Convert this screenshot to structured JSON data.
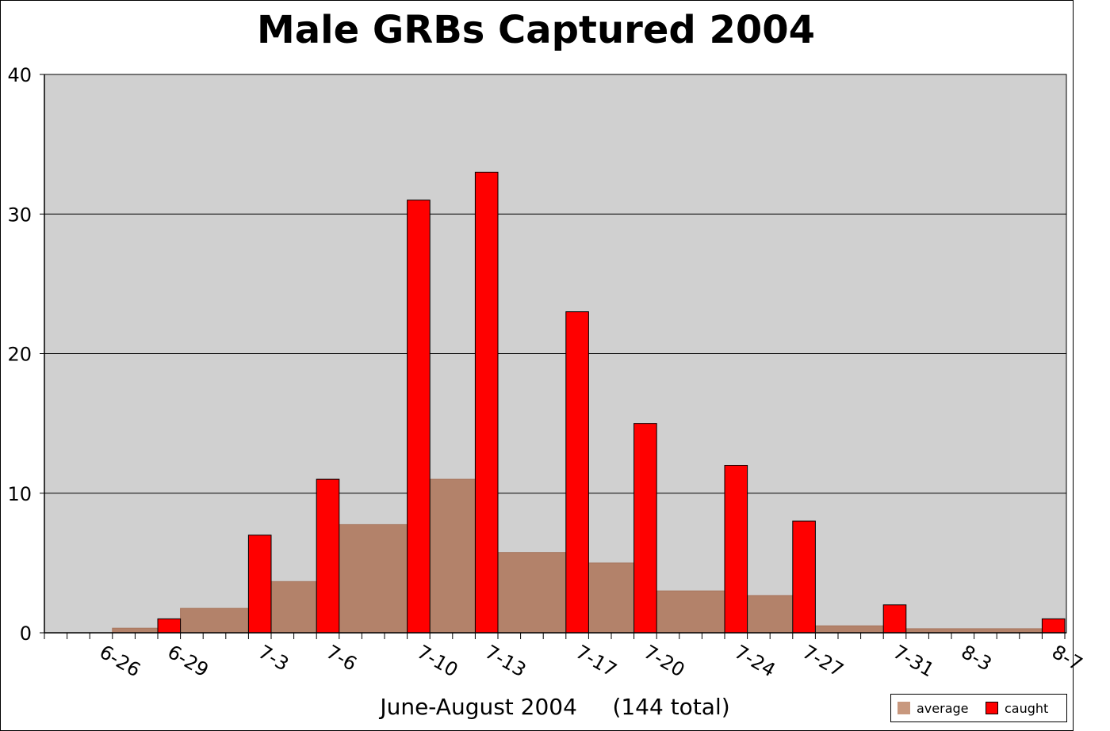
{
  "chart_data": {
    "type": "bar",
    "title": "Male GRBs Captured 2004",
    "xlabel": "June-August 2004     (144 total)",
    "ylabel": "",
    "ylim": [
      0,
      40
    ],
    "yticks": [
      0,
      10,
      20,
      30,
      40
    ],
    "grid": true,
    "legend_position": "bottom-right",
    "x_tick_labels": [
      "6-26",
      "6-29",
      "7-3",
      "7-6",
      "7-10",
      "7-13",
      "7-17",
      "7-20",
      "7-24",
      "7-27",
      "7-31",
      "8-3",
      "8-7"
    ],
    "series": [
      {
        "name": "caught",
        "color": "#ff0000",
        "points": [
          {
            "date": "6-29",
            "value": 1
          },
          {
            "date": "7-3",
            "value": 7
          },
          {
            "date": "7-6",
            "value": 11
          },
          {
            "date": "7-10",
            "value": 31
          },
          {
            "date": "7-13",
            "value": 33
          },
          {
            "date": "7-17",
            "value": 23
          },
          {
            "date": "7-20",
            "value": 15
          },
          {
            "date": "7-24",
            "value": 12
          },
          {
            "date": "7-27",
            "value": 8
          },
          {
            "date": "7-31",
            "value": 2
          },
          {
            "date": "8-7",
            "value": 1
          }
        ]
      },
      {
        "name": "average",
        "color": "#b3826a",
        "segments": [
          {
            "from": "6-27",
            "to": "6-28",
            "value": 0.33
          },
          {
            "from": "6-30",
            "to": "7-2",
            "value": 1.75
          },
          {
            "from": "7-4",
            "to": "7-5",
            "value": 3.67
          },
          {
            "from": "7-7",
            "to": "7-9",
            "value": 7.75
          },
          {
            "from": "7-11",
            "to": "7-12",
            "value": 11
          },
          {
            "from": "7-14",
            "to": "7-16",
            "value": 5.75
          },
          {
            "from": "7-18",
            "to": "7-19",
            "value": 5
          },
          {
            "from": "7-21",
            "to": "7-23",
            "value": 3
          },
          {
            "from": "7-25",
            "to": "7-26",
            "value": 2.67
          },
          {
            "from": "7-28",
            "to": "7-30",
            "value": 0.5
          },
          {
            "from": "8-1",
            "to": "8-6",
            "value": 0.29
          }
        ]
      }
    ]
  },
  "legend": {
    "average_label": "average",
    "caught_label": "caught",
    "average_color": "#c8987e",
    "caught_color": "#ff0000"
  },
  "colors": {
    "plot_background": "#d0d0d0",
    "gridline": "#000000"
  }
}
